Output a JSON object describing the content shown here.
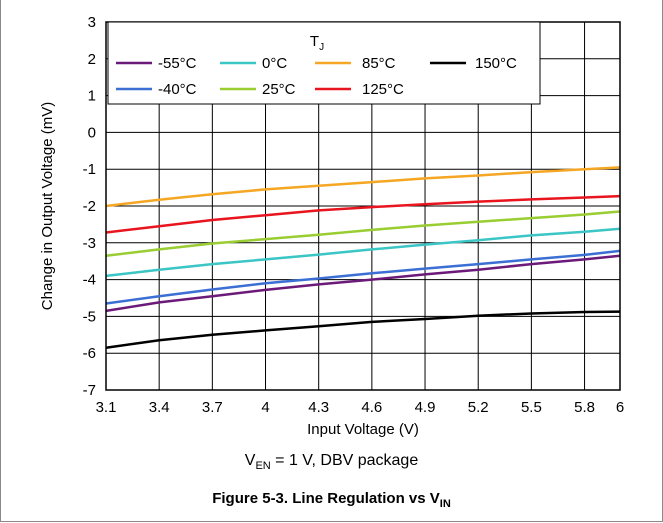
{
  "chart_data": {
    "type": "line",
    "xlabel": "Input Voltage (V)",
    "ylabel": "Change in Output Voltage (mV)",
    "xlim": [
      3.1,
      6
    ],
    "ylim": [
      -7,
      3
    ],
    "xticks": [
      3.1,
      3.4,
      3.7,
      4,
      4.3,
      4.6,
      4.9,
      5.2,
      5.5,
      5.8,
      6
    ],
    "xtick_labels": [
      "3.1",
      "3.4",
      "3.7",
      "4",
      "4.3",
      "4.6",
      "4.9",
      "5.2",
      "5.5",
      "5.8",
      "6"
    ],
    "yticks": [
      -7,
      -6,
      -5,
      -4,
      -3,
      -2,
      -1,
      0,
      1,
      2,
      3
    ],
    "ytick_labels": [
      "-7",
      "-6",
      "-5",
      "-4",
      "-3",
      "-2",
      "-1",
      "0",
      "1",
      "2",
      "3"
    ],
    "grid": true,
    "legend": {
      "title_main": "T",
      "title_sub": "J",
      "placement": "top"
    },
    "series": [
      {
        "name": "-55°C",
        "color": "#6b1a7a",
        "x": [
          3.1,
          3.4,
          3.7,
          4,
          4.3,
          4.6,
          4.9,
          5.2,
          5.5,
          5.8,
          6
        ],
        "y": [
          -4.85,
          -4.62,
          -4.45,
          -4.28,
          -4.13,
          -4.0,
          -3.86,
          -3.73,
          -3.58,
          -3.45,
          -3.35
        ]
      },
      {
        "name": "-40°C",
        "color": "#3b6fd4",
        "x": [
          3.1,
          3.4,
          3.7,
          4,
          4.3,
          4.6,
          4.9,
          5.2,
          5.5,
          5.8,
          6
        ],
        "y": [
          -4.65,
          -4.45,
          -4.27,
          -4.1,
          -3.97,
          -3.83,
          -3.7,
          -3.58,
          -3.45,
          -3.33,
          -3.22
        ]
      },
      {
        "name": "0°C",
        "color": "#3cc5c5",
        "x": [
          3.1,
          3.4,
          3.7,
          4,
          4.3,
          4.6,
          4.9,
          5.2,
          5.5,
          5.8,
          6
        ],
        "y": [
          -3.9,
          -3.73,
          -3.58,
          -3.45,
          -3.32,
          -3.18,
          -3.05,
          -2.93,
          -2.8,
          -2.7,
          -2.62
        ]
      },
      {
        "name": "25°C",
        "color": "#9acd32",
        "x": [
          3.1,
          3.4,
          3.7,
          4,
          4.3,
          4.6,
          4.9,
          5.2,
          5.5,
          5.8,
          6
        ],
        "y": [
          -3.35,
          -3.18,
          -3.02,
          -2.9,
          -2.78,
          -2.65,
          -2.53,
          -2.43,
          -2.33,
          -2.23,
          -2.15
        ]
      },
      {
        "name": "85°C",
        "color": "#f5a623",
        "x": [
          3.1,
          3.4,
          3.7,
          4,
          4.3,
          4.6,
          4.9,
          5.2,
          5.5,
          5.8,
          6
        ],
        "y": [
          -2.0,
          -1.83,
          -1.68,
          -1.55,
          -1.45,
          -1.35,
          -1.25,
          -1.17,
          -1.08,
          -1.0,
          -0.95
        ]
      },
      {
        "name": "125°C",
        "color": "#e8141e",
        "x": [
          3.1,
          3.4,
          3.7,
          4,
          4.3,
          4.6,
          4.9,
          5.2,
          5.5,
          5.8,
          6
        ],
        "y": [
          -2.72,
          -2.55,
          -2.38,
          -2.25,
          -2.12,
          -2.03,
          -1.95,
          -1.88,
          -1.82,
          -1.77,
          -1.73
        ]
      },
      {
        "name": "150°C",
        "color": "#000000",
        "x": [
          3.1,
          3.4,
          3.7,
          4,
          4.3,
          4.6,
          4.9,
          5.2,
          5.5,
          5.8,
          6
        ],
        "y": [
          -5.85,
          -5.65,
          -5.5,
          -5.38,
          -5.27,
          -5.15,
          -5.07,
          -4.98,
          -4.92,
          -4.88,
          -4.87
        ]
      }
    ]
  },
  "conditions": {
    "v_main": "V",
    "v_sub": "EN",
    "rest": " = 1 V, DBV package"
  },
  "caption": {
    "prefix": "Figure 5-3. Line Regulation vs V",
    "sub": "IN"
  }
}
